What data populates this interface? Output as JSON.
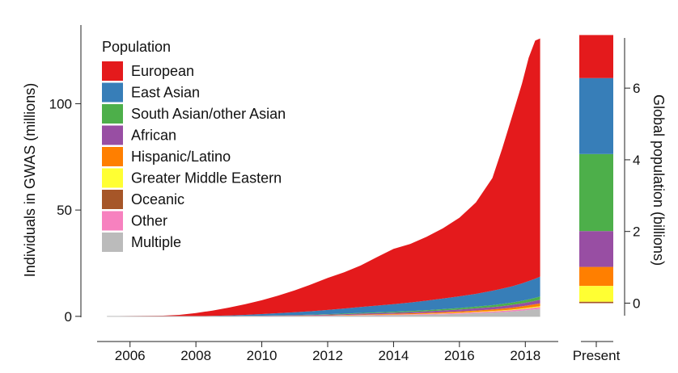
{
  "chart_data": {
    "type": "area",
    "stacked": true,
    "grid": false,
    "legend": {
      "title": "Population",
      "placement": "top-left",
      "entries": [
        {
          "label": "European",
          "color": "#e41a1c"
        },
        {
          "label": "East Asian",
          "color": "#377eb8"
        },
        {
          "label": "South Asian/other Asian",
          "color": "#4daf4a"
        },
        {
          "label": "African",
          "color": "#984ea3"
        },
        {
          "label": "Hispanic/Latino",
          "color": "#ff7f00"
        },
        {
          "label": "Greater Middle Eastern",
          "color": "#ffff33"
        },
        {
          "label": "Oceanic",
          "color": "#a65628"
        },
        {
          "label": "Other",
          "color": "#f781bf"
        },
        {
          "label": "Multiple",
          "color": "#bbbbbb"
        }
      ]
    },
    "main": {
      "ylabel": "Individuals in GWAS (millions)",
      "xlabel": "",
      "xlim": [
        2005.0,
        2019.0
      ],
      "ylim": [
        -5,
        137
      ],
      "xticks": [
        2006,
        2008,
        2010,
        2012,
        2014,
        2016,
        2018
      ],
      "yticks": [
        0,
        50,
        100
      ],
      "x": [
        2005.3,
        2007.0,
        2007.5,
        2008.0,
        2008.5,
        2009.0,
        2009.5,
        2010.0,
        2010.5,
        2011.0,
        2011.5,
        2012.0,
        2012.5,
        2013.0,
        2013.5,
        2014.0,
        2014.5,
        2015.0,
        2015.5,
        2016.0,
        2016.5,
        2017.0,
        2017.3,
        2017.6,
        2017.9,
        2018.1,
        2018.3,
        2018.45
      ],
      "series": [
        {
          "name": "Multiple",
          "values": [
            0,
            0,
            0,
            0,
            0,
            0,
            0.01,
            0.03,
            0.06,
            0.1,
            0.15,
            0.2,
            0.3,
            0.4,
            0.5,
            0.6,
            0.7,
            0.8,
            1.0,
            1.2,
            1.5,
            1.8,
            2.0,
            2.3,
            2.7,
            3.0,
            3.3,
            3.5
          ]
        },
        {
          "name": "Other",
          "values": [
            0,
            0,
            0,
            0,
            0,
            0,
            0.01,
            0.02,
            0.04,
            0.05,
            0.07,
            0.1,
            0.12,
            0.15,
            0.18,
            0.2,
            0.25,
            0.3,
            0.35,
            0.4,
            0.45,
            0.5,
            0.55,
            0.6,
            0.65,
            0.7,
            0.75,
            0.8
          ]
        },
        {
          "name": "Oceanic",
          "values": [
            0,
            0,
            0,
            0,
            0,
            0,
            0,
            0,
            0,
            0,
            0,
            0,
            0,
            0,
            0,
            0,
            0.01,
            0.01,
            0.02,
            0.02,
            0.03,
            0.03,
            0.04,
            0.04,
            0.05,
            0.05,
            0.05,
            0.05
          ]
        },
        {
          "name": "Greater Middle Eastern",
          "values": [
            0,
            0,
            0,
            0,
            0,
            0,
            0,
            0,
            0.01,
            0.01,
            0.02,
            0.02,
            0.03,
            0.04,
            0.05,
            0.06,
            0.08,
            0.1,
            0.12,
            0.15,
            0.18,
            0.22,
            0.25,
            0.28,
            0.32,
            0.35,
            0.4,
            0.45
          ]
        },
        {
          "name": "Hispanic/Latino",
          "values": [
            0,
            0,
            0,
            0,
            0.01,
            0.02,
            0.04,
            0.06,
            0.08,
            0.1,
            0.13,
            0.16,
            0.2,
            0.25,
            0.3,
            0.35,
            0.4,
            0.45,
            0.5,
            0.55,
            0.6,
            0.7,
            0.8,
            0.9,
            1.0,
            1.1,
            1.2,
            1.3
          ]
        },
        {
          "name": "African",
          "values": [
            0,
            0,
            0,
            0.01,
            0.03,
            0.06,
            0.1,
            0.15,
            0.2,
            0.25,
            0.3,
            0.35,
            0.4,
            0.45,
            0.5,
            0.55,
            0.6,
            0.7,
            0.8,
            0.9,
            1.0,
            1.1,
            1.2,
            1.3,
            1.4,
            1.5,
            1.6,
            1.7
          ]
        },
        {
          "name": "South Asian/other Asian",
          "values": [
            0,
            0,
            0,
            0,
            0.01,
            0.02,
            0.04,
            0.06,
            0.09,
            0.12,
            0.15,
            0.2,
            0.25,
            0.3,
            0.35,
            0.4,
            0.45,
            0.5,
            0.6,
            0.7,
            0.8,
            0.9,
            1.0,
            1.1,
            1.2,
            1.3,
            1.4,
            1.5
          ]
        },
        {
          "name": "East Asian",
          "values": [
            0,
            0,
            0,
            0.05,
            0.15,
            0.3,
            0.5,
            0.75,
            1.0,
            1.3,
            1.6,
            2.0,
            2.4,
            2.8,
            3.2,
            3.6,
            4.0,
            4.5,
            5.0,
            5.5,
            6.0,
            6.8,
            7.2,
            7.6,
            8.2,
            8.6,
            9.0,
            9.4
          ]
        },
        {
          "name": "European",
          "values": [
            0.1,
            0.3,
            0.7,
            1.5,
            2.5,
            3.7,
            5.0,
            6.5,
            8.3,
            10.3,
            12.6,
            15.0,
            17.0,
            19.5,
            22.8,
            26.0,
            27.5,
            30.0,
            33.0,
            37.0,
            43.0,
            53.0,
            66.0,
            80.0,
            94.0,
            105.0,
            112.0,
            112.0
          ]
        }
      ]
    },
    "present": {
      "category": "Present",
      "ylabel": "Global population (billions)",
      "ylim": [
        -0.35,
        7.4
      ],
      "yticks": [
        0,
        2,
        4,
        6
      ],
      "series": [
        {
          "name": "Oceanic",
          "value": 0.04
        },
        {
          "name": "Greater Middle Eastern",
          "value": 0.44
        },
        {
          "name": "Hispanic/Latino",
          "value": 0.53
        },
        {
          "name": "African",
          "value": 1.0
        },
        {
          "name": "South Asian/other Asian",
          "value": 2.15
        },
        {
          "name": "East Asian",
          "value": 2.12
        },
        {
          "name": "European",
          "value": 1.2
        }
      ]
    }
  }
}
